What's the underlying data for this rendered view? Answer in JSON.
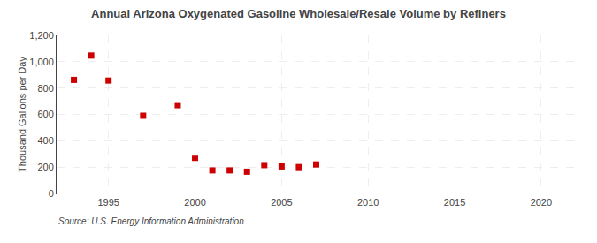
{
  "chart_data": {
    "type": "scatter",
    "title": "Annual Arizona Oxygenated Gasoline Wholesale/Resale Volume by Refiners",
    "ylabel": "Thousand Gallons per Day",
    "source": "Source: U.S. Energy Information Administration",
    "x": [
      1993,
      1994,
      1995,
      1997,
      1999,
      2000,
      2001,
      2002,
      2003,
      2004,
      2005,
      2006,
      2007
    ],
    "values": [
      862,
      1047,
      857,
      590,
      670,
      270,
      175,
      175,
      165,
      215,
      205,
      200,
      220
    ],
    "color": "#CC0000",
    "marker": "square",
    "xlim": [
      1992,
      2022
    ],
    "xticks": [
      1995,
      2000,
      2005,
      2010,
      2015,
      2020
    ],
    "ylim": [
      0,
      1200
    ],
    "yticks": [
      0,
      200,
      400,
      600,
      800,
      {
        "value": 1000,
        "label": "1,000"
      },
      {
        "value": 1200,
        "label": "1,200"
      }
    ],
    "grid": true
  }
}
